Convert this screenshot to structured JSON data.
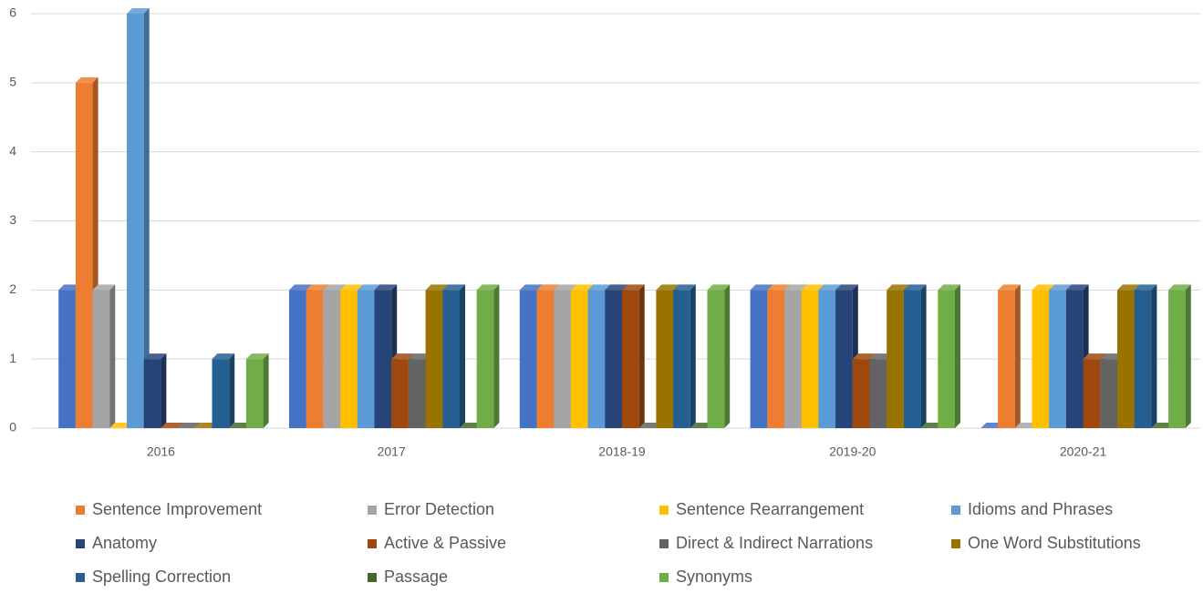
{
  "chart_data": {
    "type": "bar3d",
    "categories": [
      "2016",
      "2017",
      "2018-19",
      "2019-20",
      "2020-21"
    ],
    "series": [
      {
        "name": null,
        "color": "#4472C4",
        "values": [
          2,
          2,
          2,
          2,
          0
        ]
      },
      {
        "name": "Sentence Improvement",
        "color": "#ED7D31",
        "values": [
          5,
          2,
          2,
          2,
          2
        ]
      },
      {
        "name": "Error Detection",
        "color": "#A5A5A5",
        "values": [
          2,
          2,
          2,
          2,
          0
        ]
      },
      {
        "name": "Sentence Rearrangement",
        "color": "#FFC000",
        "values": [
          0,
          2,
          2,
          2,
          2
        ]
      },
      {
        "name": "Idioms and Phrases",
        "color": "#5B9BD5",
        "values": [
          6,
          2,
          2,
          2,
          2
        ]
      },
      {
        "name": "Anatomy",
        "color": "#264478",
        "values": [
          1,
          2,
          2,
          2,
          2
        ]
      },
      {
        "name": "Active & Passive",
        "color": "#9E480E",
        "values": [
          0,
          1,
          2,
          1,
          1
        ]
      },
      {
        "name": "Direct & Indirect Narrations",
        "color": "#636363",
        "values": [
          0,
          1,
          0,
          1,
          1
        ]
      },
      {
        "name": "One Word Substitutions",
        "color": "#997300",
        "values": [
          0,
          2,
          2,
          2,
          2
        ]
      },
      {
        "name": "Spelling Correction",
        "color": "#255E91",
        "values": [
          1,
          2,
          2,
          2,
          2
        ]
      },
      {
        "name": "Passage",
        "color": "#43682B",
        "values": [
          0,
          0,
          0,
          0,
          0
        ]
      },
      {
        "name": "Synonyms",
        "color": "#70AD47",
        "values": [
          1,
          2,
          2,
          2,
          2
        ]
      }
    ],
    "ylim": [
      0,
      6
    ],
    "yticks": [
      0,
      1,
      2,
      3,
      4,
      5,
      6
    ],
    "grid": true,
    "legend": "bottom"
  }
}
